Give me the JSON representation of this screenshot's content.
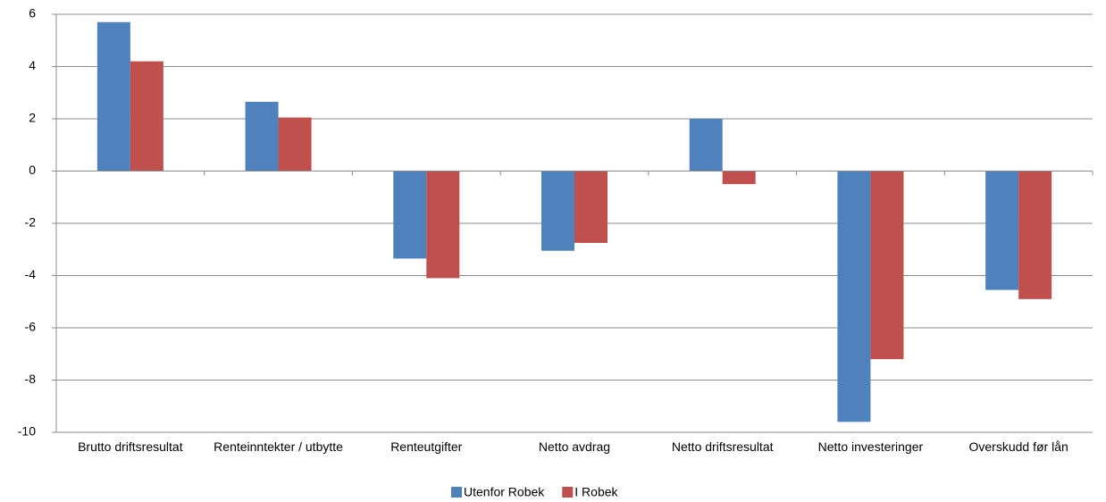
{
  "chart_data": {
    "type": "bar",
    "categories": [
      "Brutto driftsresultat",
      "Renteinntekter / utbytte",
      "Renteutgifter",
      "Netto avdrag",
      "Netto driftsresultat",
      "Netto investeringer",
      "Overskudd før lån"
    ],
    "series": [
      {
        "name": "Utenfor Robek",
        "color": "#4f81bd",
        "values": [
          5.7,
          2.65,
          -3.35,
          -3.05,
          2.0,
          -9.6,
          -4.55
        ]
      },
      {
        "name": "I Robek",
        "color": "#c0504d",
        "values": [
          4.2,
          2.05,
          -4.1,
          -2.75,
          -0.5,
          -7.2,
          -4.9
        ]
      }
    ],
    "ylim": [
      -10,
      6
    ],
    "yticks": [
      -10,
      -8,
      -6,
      -4,
      -2,
      0,
      2,
      4,
      6
    ],
    "grid": true,
    "legend": "bottom"
  }
}
